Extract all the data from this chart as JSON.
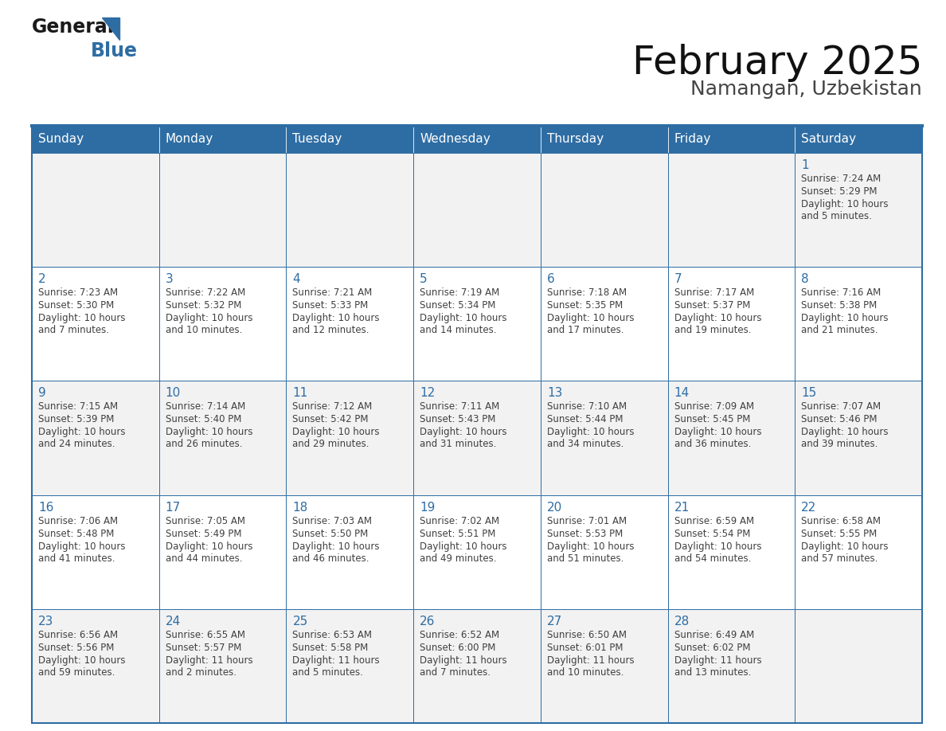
{
  "title": "February 2025",
  "subtitle": "Namangan, Uzbekistan",
  "header_bg": "#2E6DA4",
  "header_text_color": "#FFFFFF",
  "row_bg": [
    "#F2F2F2",
    "#FFFFFF",
    "#F2F2F2",
    "#FFFFFF",
    "#F2F2F2"
  ],
  "day_number_color": "#2E6DA4",
  "cell_text_color": "#404040",
  "border_color": "#2E6DA4",
  "line_color": "#2E6DA4",
  "days_of_week": [
    "Sunday",
    "Monday",
    "Tuesday",
    "Wednesday",
    "Thursday",
    "Friday",
    "Saturday"
  ],
  "calendar_data": [
    [
      null,
      null,
      null,
      null,
      null,
      null,
      {
        "day": "1",
        "sunrise": "7:24 AM",
        "sunset": "5:29 PM",
        "daylight": "10 hours",
        "daylight2": "and 5 minutes."
      }
    ],
    [
      {
        "day": "2",
        "sunrise": "7:23 AM",
        "sunset": "5:30 PM",
        "daylight": "10 hours",
        "daylight2": "and 7 minutes."
      },
      {
        "day": "3",
        "sunrise": "7:22 AM",
        "sunset": "5:32 PM",
        "daylight": "10 hours",
        "daylight2": "and 10 minutes."
      },
      {
        "day": "4",
        "sunrise": "7:21 AM",
        "sunset": "5:33 PM",
        "daylight": "10 hours",
        "daylight2": "and 12 minutes."
      },
      {
        "day": "5",
        "sunrise": "7:19 AM",
        "sunset": "5:34 PM",
        "daylight": "10 hours",
        "daylight2": "and 14 minutes."
      },
      {
        "day": "6",
        "sunrise": "7:18 AM",
        "sunset": "5:35 PM",
        "daylight": "10 hours",
        "daylight2": "and 17 minutes."
      },
      {
        "day": "7",
        "sunrise": "7:17 AM",
        "sunset": "5:37 PM",
        "daylight": "10 hours",
        "daylight2": "and 19 minutes."
      },
      {
        "day": "8",
        "sunrise": "7:16 AM",
        "sunset": "5:38 PM",
        "daylight": "10 hours",
        "daylight2": "and 21 minutes."
      }
    ],
    [
      {
        "day": "9",
        "sunrise": "7:15 AM",
        "sunset": "5:39 PM",
        "daylight": "10 hours",
        "daylight2": "and 24 minutes."
      },
      {
        "day": "10",
        "sunrise": "7:14 AM",
        "sunset": "5:40 PM",
        "daylight": "10 hours",
        "daylight2": "and 26 minutes."
      },
      {
        "day": "11",
        "sunrise": "7:12 AM",
        "sunset": "5:42 PM",
        "daylight": "10 hours",
        "daylight2": "and 29 minutes."
      },
      {
        "day": "12",
        "sunrise": "7:11 AM",
        "sunset": "5:43 PM",
        "daylight": "10 hours",
        "daylight2": "and 31 minutes."
      },
      {
        "day": "13",
        "sunrise": "7:10 AM",
        "sunset": "5:44 PM",
        "daylight": "10 hours",
        "daylight2": "and 34 minutes."
      },
      {
        "day": "14",
        "sunrise": "7:09 AM",
        "sunset": "5:45 PM",
        "daylight": "10 hours",
        "daylight2": "and 36 minutes."
      },
      {
        "day": "15",
        "sunrise": "7:07 AM",
        "sunset": "5:46 PM",
        "daylight": "10 hours",
        "daylight2": "and 39 minutes."
      }
    ],
    [
      {
        "day": "16",
        "sunrise": "7:06 AM",
        "sunset": "5:48 PM",
        "daylight": "10 hours",
        "daylight2": "and 41 minutes."
      },
      {
        "day": "17",
        "sunrise": "7:05 AM",
        "sunset": "5:49 PM",
        "daylight": "10 hours",
        "daylight2": "and 44 minutes."
      },
      {
        "day": "18",
        "sunrise": "7:03 AM",
        "sunset": "5:50 PM",
        "daylight": "10 hours",
        "daylight2": "and 46 minutes."
      },
      {
        "day": "19",
        "sunrise": "7:02 AM",
        "sunset": "5:51 PM",
        "daylight": "10 hours",
        "daylight2": "and 49 minutes."
      },
      {
        "day": "20",
        "sunrise": "7:01 AM",
        "sunset": "5:53 PM",
        "daylight": "10 hours",
        "daylight2": "and 51 minutes."
      },
      {
        "day": "21",
        "sunrise": "6:59 AM",
        "sunset": "5:54 PM",
        "daylight": "10 hours",
        "daylight2": "and 54 minutes."
      },
      {
        "day": "22",
        "sunrise": "6:58 AM",
        "sunset": "5:55 PM",
        "daylight": "10 hours",
        "daylight2": "and 57 minutes."
      }
    ],
    [
      {
        "day": "23",
        "sunrise": "6:56 AM",
        "sunset": "5:56 PM",
        "daylight": "10 hours",
        "daylight2": "and 59 minutes."
      },
      {
        "day": "24",
        "sunrise": "6:55 AM",
        "sunset": "5:57 PM",
        "daylight": "11 hours",
        "daylight2": "and 2 minutes."
      },
      {
        "day": "25",
        "sunrise": "6:53 AM",
        "sunset": "5:58 PM",
        "daylight": "11 hours",
        "daylight2": "and 5 minutes."
      },
      {
        "day": "26",
        "sunrise": "6:52 AM",
        "sunset": "6:00 PM",
        "daylight": "11 hours",
        "daylight2": "and 7 minutes."
      },
      {
        "day": "27",
        "sunrise": "6:50 AM",
        "sunset": "6:01 PM",
        "daylight": "11 hours",
        "daylight2": "and 10 minutes."
      },
      {
        "day": "28",
        "sunrise": "6:49 AM",
        "sunset": "6:02 PM",
        "daylight": "11 hours",
        "daylight2": "and 13 minutes."
      },
      null
    ]
  ],
  "logo_general_color": "#1a1a1a",
  "logo_blue_color": "#2E6DA4",
  "logo_triangle_color": "#2E6DA4"
}
